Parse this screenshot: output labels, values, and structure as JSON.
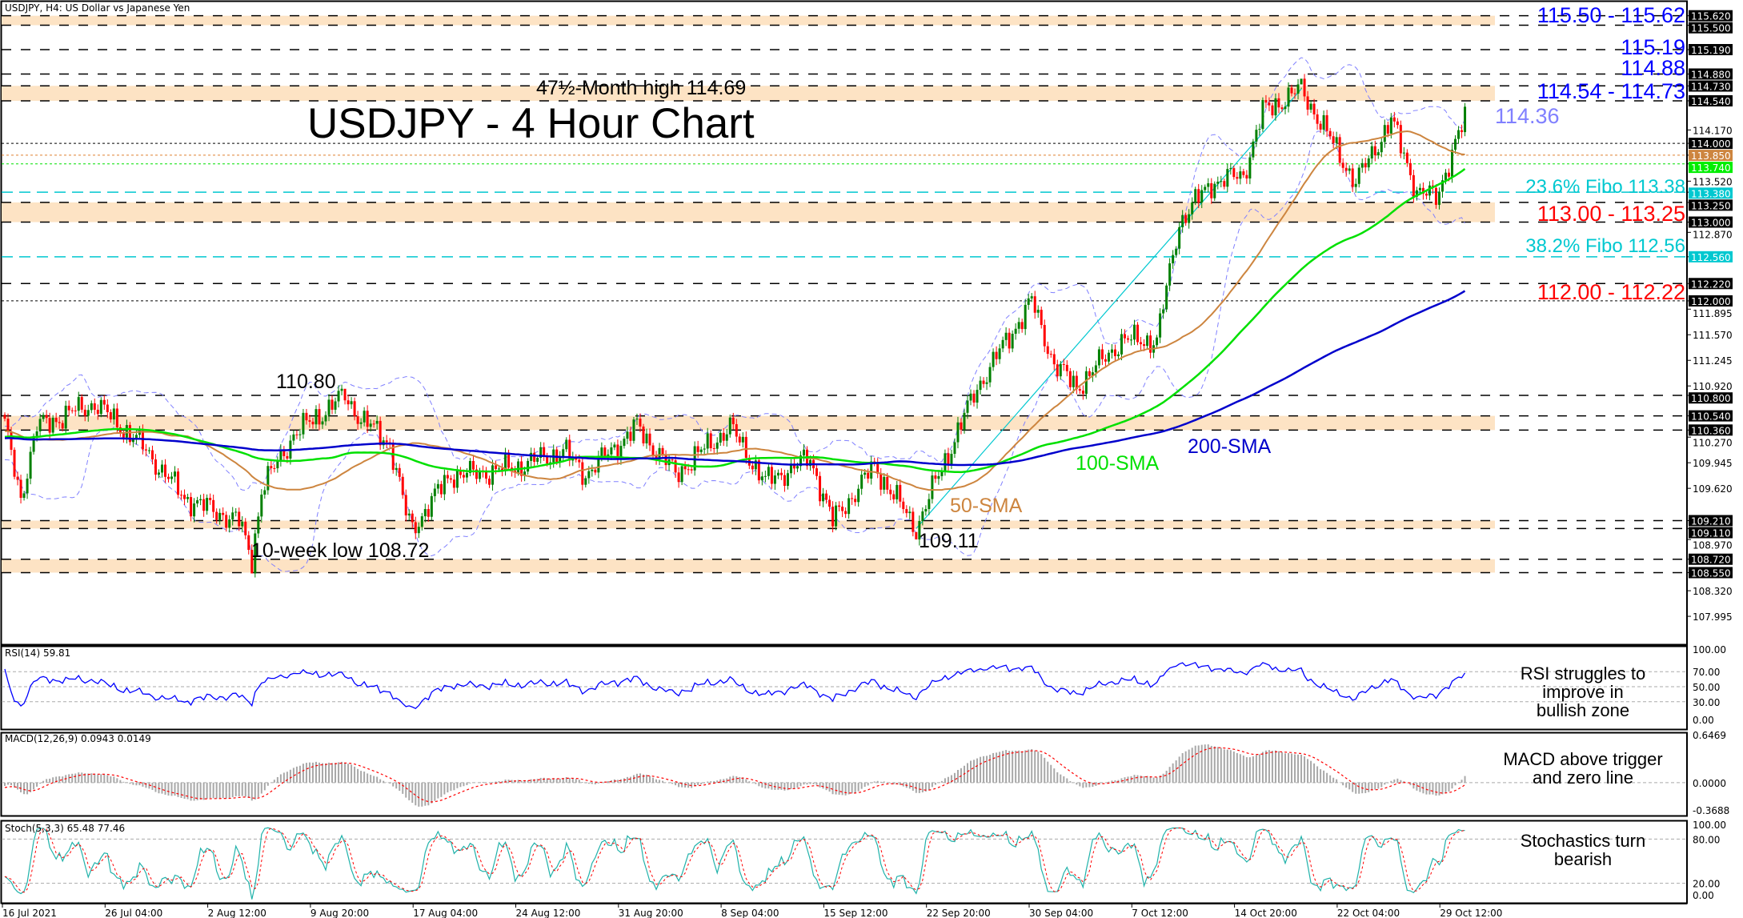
{
  "header": {
    "symbol_title": "USDJPY, H4:  US Dollar vs Japanese Yen"
  },
  "annotations": {
    "title": "USDJPY - 4 Hour Chart",
    "high_label": "47½-Month high 114.69",
    "last_label": "114.36",
    "label_11080": "110.80",
    "low_label": "10-week low 108.72",
    "label_10911": "109.11",
    "sma50": "50-SMA",
    "sma100": "100-SMA",
    "sma200": "200-SMA",
    "lvl1": "115.50 - 115.62",
    "lvl2": "115.19",
    "lvl3": "114.88",
    "lvl4": "114.54 - 114.73",
    "fibo236": "23.6% Fibo 113.38",
    "lvl5": "113.00 - 113.25",
    "fibo382": "38.2% Fibo 112.56",
    "lvl6": "112.00 - 112.22",
    "rsi_note": [
      "RSI struggles to",
      "improve in",
      "bullish zone"
    ],
    "macd_note": [
      "MACD above trigger",
      "and zero line"
    ],
    "stoch_note": [
      "Stochastics turn",
      "bearish"
    ]
  },
  "indicators": {
    "rsi_title": "RSI(14) 59.81",
    "macd_title": "MACD(12,26,9) 0.0943 0.0149",
    "stoch_title": "Stoch(5,3,3) 65.48 77.46",
    "rsi_ticks": [
      "100.00",
      "70.00",
      "50.00",
      "30.00",
      "0.00"
    ],
    "macd_ticks": [
      "0.6469",
      "0.0000",
      "-0.3688"
    ],
    "stoch_ticks": [
      "100.00",
      "80.00",
      "20.00",
      "0.00"
    ]
  },
  "colors": {
    "up": "#008000",
    "down": "#ff0000",
    "sma50": "#cd853f",
    "sma100": "#00e000",
    "sma200": "#0000cc",
    "bands": "#8080ff",
    "zone": "#fde3c4",
    "fibo": "#00c8d0",
    "level_blue": "#0000ff",
    "level_red": "#ff0000"
  },
  "chart_data": {
    "type": "candlestick",
    "title": "USDJPY - 4 Hour Chart",
    "ylim": [
      107.64,
      115.82
    ],
    "bars": 456,
    "price_path": [
      [
        0,
        110.4
      ],
      [
        5,
        109.5
      ],
      [
        10,
        110.4
      ],
      [
        28,
        110.7
      ],
      [
        42,
        110.2
      ],
      [
        56,
        109.5
      ],
      [
        73,
        109.2
      ],
      [
        77,
        108.72
      ],
      [
        80,
        109.6
      ],
      [
        90,
        110.3
      ],
      [
        106,
        110.8
      ],
      [
        111,
        110.5
      ],
      [
        120,
        110.2
      ],
      [
        125,
        109.3
      ],
      [
        127,
        109.11
      ],
      [
        139,
        109.8
      ],
      [
        146,
        109.8
      ],
      [
        160,
        109.9
      ],
      [
        174,
        110.1
      ],
      [
        181,
        109.8
      ],
      [
        197,
        110.4
      ],
      [
        209,
        109.8
      ],
      [
        226,
        110.4
      ],
      [
        237,
        109.7
      ],
      [
        251,
        110.0
      ],
      [
        258,
        109.2
      ],
      [
        271,
        109.9
      ],
      [
        284,
        109.11
      ],
      [
        289,
        109.6
      ],
      [
        303,
        110.9
      ],
      [
        320,
        112.0
      ],
      [
        327,
        111.2
      ],
      [
        334,
        110.9
      ],
      [
        348,
        111.5
      ],
      [
        359,
        111.5
      ],
      [
        366,
        113.0
      ],
      [
        376,
        113.5
      ],
      [
        386,
        113.6
      ],
      [
        392,
        114.4
      ],
      [
        404,
        114.69
      ],
      [
        411,
        114.2
      ],
      [
        421,
        113.5
      ],
      [
        432,
        114.3
      ],
      [
        440,
        113.4
      ],
      [
        446,
        113.3
      ],
      [
        452,
        114.0
      ],
      [
        455,
        114.3
      ]
    ],
    "axis_ticks": [
      "114.170",
      "113.520",
      "112.870",
      "111.895",
      "111.570",
      "111.245",
      "110.920",
      "110.270",
      "109.945",
      "109.620",
      "108.970",
      "108.320",
      "107.995"
    ],
    "levels": [
      {
        "price": 115.62,
        "label": "115.620",
        "style": "dash",
        "tag": "black"
      },
      {
        "price": 115.5,
        "label": "115.500",
        "style": "dash",
        "tag": "black"
      },
      {
        "price": 115.19,
        "label": "115.190",
        "style": "dash",
        "tag": "black"
      },
      {
        "price": 114.88,
        "label": "114.880",
        "style": "dash",
        "tag": "black"
      },
      {
        "price": 114.73,
        "label": "114.730",
        "style": "dash",
        "tag": "black"
      },
      {
        "price": 114.54,
        "label": "114.540",
        "style": "dash",
        "tag": "black"
      },
      {
        "price": 114.0,
        "label": "114.000",
        "style": "dot",
        "tag": "black"
      },
      {
        "price": 113.85,
        "label": "113.850",
        "style": "dot-orange",
        "tag": "orange"
      },
      {
        "price": 113.74,
        "label": "113.740",
        "style": "dot-green",
        "tag": "green"
      },
      {
        "price": 113.38,
        "label": "113.380",
        "style": "cyan",
        "tag": "cyan"
      },
      {
        "price": 113.25,
        "label": "113.250",
        "style": "dash",
        "tag": "black"
      },
      {
        "price": 113.0,
        "label": "113.000",
        "style": "dash",
        "tag": "black"
      },
      {
        "price": 112.56,
        "label": "112.560",
        "style": "cyan",
        "tag": "cyan"
      },
      {
        "price": 112.22,
        "label": "112.220",
        "style": "dash",
        "tag": "black"
      },
      {
        "price": 112.0,
        "label": "112.000",
        "style": "dot",
        "tag": "black"
      },
      {
        "price": 110.8,
        "label": "110.800",
        "style": "dash",
        "tag": "black"
      },
      {
        "price": 110.54,
        "label": "110.540",
        "style": "dash",
        "tag": "black"
      },
      {
        "price": 110.36,
        "label": "110.360",
        "style": "dash",
        "tag": "black"
      },
      {
        "price": 109.21,
        "label": "109.210",
        "style": "dash",
        "tag": "black"
      },
      {
        "price": 109.11,
        "label": "109.110",
        "style": "dash",
        "tag": "black"
      },
      {
        "price": 108.72,
        "label": "108.720",
        "style": "dash",
        "tag": "black"
      },
      {
        "price": 108.55,
        "label": "108.550",
        "style": "dash",
        "tag": "black"
      }
    ],
    "zones": [
      [
        115.5,
        115.62
      ],
      [
        114.54,
        114.73
      ],
      [
        113.0,
        113.25
      ],
      [
        110.36,
        110.54
      ],
      [
        109.11,
        109.21
      ],
      [
        108.55,
        108.72
      ]
    ],
    "x_labels": [
      "16 Jul 2021",
      "26 Jul 04:00",
      "2 Aug 12:00",
      "9 Aug 20:00",
      "17 Aug 04:00",
      "24 Aug 12:00",
      "31 Aug 20:00",
      "8 Sep 04:00",
      "15 Sep 12:00",
      "22 Sep 20:00",
      "30 Sep 04:00",
      "7 Oct 12:00",
      "14 Oct 20:00",
      "22 Oct 04:00",
      "29 Oct 12:00"
    ],
    "series": [
      {
        "name": "50-SMA",
        "period": 50
      },
      {
        "name": "100-SMA",
        "period": 100
      },
      {
        "name": "200-SMA",
        "period": 200
      },
      {
        "name": "Bollinger",
        "period": 20,
        "dev": 2
      }
    ],
    "rsi": {
      "period": 14,
      "levels": [
        70,
        50,
        30
      ]
    },
    "macd": {
      "fast": 12,
      "slow": 26,
      "signal": 9,
      "range": [
        -0.3688,
        0.6469
      ]
    },
    "stoch": {
      "k": 5,
      "d": 3,
      "slow": 3,
      "levels": [
        80,
        20
      ]
    }
  }
}
